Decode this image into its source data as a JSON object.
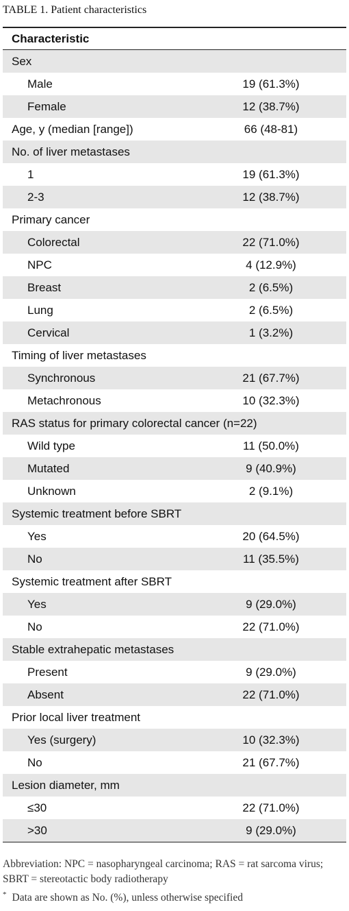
{
  "title": "TABLE 1. Patient characteristics",
  "table": {
    "header": "Characteristic",
    "groups": [
      {
        "label": "Sex",
        "items": [
          [
            "Male",
            "19 (61.3%)"
          ],
          [
            "Female",
            "12 (38.7%)"
          ]
        ]
      },
      {
        "label": "Age, y (median [range])",
        "value": "66 (48-81)"
      },
      {
        "label": "No. of liver metastases",
        "items": [
          [
            "1",
            "19 (61.3%)"
          ],
          [
            "2-3",
            "12 (38.7%)"
          ]
        ]
      },
      {
        "label": "Primary cancer",
        "items": [
          [
            "Colorectal",
            "22 (71.0%)"
          ],
          [
            "NPC",
            "4 (12.9%)"
          ],
          [
            "Breast",
            "2 (6.5%)"
          ],
          [
            "Lung",
            "2 (6.5%)"
          ],
          [
            "Cervical",
            "1 (3.2%)"
          ]
        ]
      },
      {
        "label": "Timing of liver metastases",
        "items": [
          [
            "Synchronous",
            "21 (67.7%)"
          ],
          [
            "Metachronous",
            "10 (32.3%)"
          ]
        ]
      },
      {
        "label": "RAS status for primary colorectal cancer (n=22)",
        "items": [
          [
            "Wild type",
            "11 (50.0%)"
          ],
          [
            "Mutated",
            "9 (40.9%)"
          ],
          [
            "Unknown",
            "2 (9.1%)"
          ]
        ]
      },
      {
        "label": "Systemic treatment before SBRT",
        "items": [
          [
            "Yes",
            "20 (64.5%)"
          ],
          [
            "No",
            "11 (35.5%)"
          ]
        ]
      },
      {
        "label": "Systemic treatment after SBRT",
        "items": [
          [
            "Yes",
            "9 (29.0%)"
          ],
          [
            "No",
            "22 (71.0%)"
          ]
        ]
      },
      {
        "label": "Stable extrahepatic metastases",
        "items": [
          [
            "Present",
            "9 (29.0%)"
          ],
          [
            "Absent",
            "22 (71.0%)"
          ]
        ]
      },
      {
        "label": "Prior local liver treatment",
        "items": [
          [
            "Yes (surgery)",
            "10 (32.3%)"
          ],
          [
            "No",
            "21 (67.7%)"
          ]
        ]
      },
      {
        "label": "Lesion diameter, mm",
        "items": [
          [
            "≤30",
            "22 (71.0%)"
          ],
          [
            ">30",
            "9 (29.0%)"
          ]
        ]
      }
    ]
  },
  "footnotes": {
    "abbreviation": "Abbreviation: NPC = nasopharyngeal carcinoma; RAS = rat sarcoma virus; SBRT = stereotactic body radiotherapy",
    "marker": "*",
    "note": "Data are shown as No. (%), unless otherwise specified"
  }
}
